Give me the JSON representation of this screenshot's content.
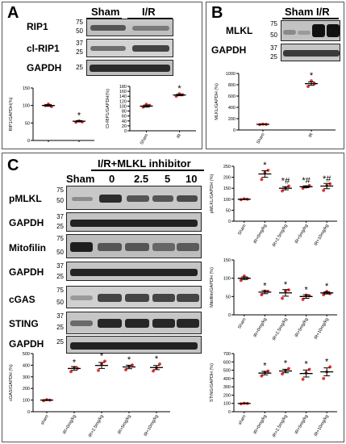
{
  "panels": {
    "A": {
      "label": "A",
      "groups": [
        "Sham",
        "I/R"
      ],
      "rows": [
        {
          "label": "RIP1",
          "mw": [
            "75",
            "50"
          ]
        },
        {
          "label": "cl-RIP1",
          "mw": [
            "37",
            "25"
          ]
        },
        {
          "label": "GAPDH",
          "mw": [
            "25"
          ]
        }
      ]
    },
    "B": {
      "label": "B",
      "groups": [
        "Sham",
        "I/R"
      ],
      "rows": [
        {
          "label": "MLKL",
          "mw": [
            "75",
            "50"
          ]
        },
        {
          "label": "GAPDH",
          "mw": [
            "37",
            "25"
          ]
        }
      ]
    },
    "C": {
      "label": "C",
      "header": "I/R+MLKL inhibitor",
      "group_labels": [
        "Sham",
        "0",
        "2.5",
        "5",
        "10"
      ],
      "rows": [
        {
          "label": "pMLKL",
          "mw": [
            "75",
            "50"
          ]
        },
        {
          "label": "GAPDH",
          "mw": [
            "37",
            "25"
          ]
        },
        {
          "label": "Mitofilin",
          "mw": [
            "75",
            "50"
          ]
        },
        {
          "label": "GAPDH",
          "mw": [
            "37",
            "25"
          ]
        },
        {
          "label": "cGAS",
          "mw": [
            "75",
            "50"
          ]
        },
        {
          "label": "STING",
          "mw": [
            "37",
            "25"
          ]
        },
        {
          "label": "GAPDH",
          "mw": [
            "25"
          ]
        }
      ]
    }
  },
  "chart_data": [
    {
      "id": "A1",
      "type": "scatter",
      "ylabel": "RIP1/GAPDH(%)",
      "ylim": [
        0,
        150
      ],
      "yticks": [
        "0",
        "50",
        "100",
        "150"
      ],
      "categories": [
        "",
        ""
      ],
      "values": [
        100,
        55
      ],
      "points": [
        [
          100,
          104,
          97
        ],
        [
          52,
          56,
          53
        ]
      ],
      "sig": [
        "",
        "*"
      ],
      "xlabel_tilt": false
    },
    {
      "id": "A2",
      "type": "scatter",
      "ylabel": "Cl-RIP1/GAPDH(%)",
      "ylim": [
        0,
        180
      ],
      "yticks": [
        "0",
        "20",
        "40",
        "60",
        "80",
        "100",
        "120",
        "140",
        "160",
        "180"
      ],
      "categories": [
        "Sham",
        "IR"
      ],
      "values": [
        100,
        145
      ],
      "points": [
        [
          96,
          107,
          103
        ],
        [
          140,
          150,
          146
        ]
      ],
      "sig": [
        "",
        "*"
      ],
      "xlabel_tilt": true
    },
    {
      "id": "B1",
      "type": "scatter",
      "ylabel": "MLKL/GAPDH (%)",
      "ylim": [
        0,
        1000
      ],
      "yticks": [
        "0",
        "200",
        "400",
        "600",
        "800",
        "1000"
      ],
      "categories": [
        "Sham",
        "IR"
      ],
      "values": [
        100,
        820
      ],
      "points": [
        [
          95,
          104,
          100
        ],
        [
          770,
          870,
          820
        ]
      ],
      "sig": [
        "",
        "*"
      ],
      "xlabel_tilt": true
    },
    {
      "id": "C1",
      "type": "scatter",
      "ylabel": "pMLKL/GAPDH (%)",
      "ylim": [
        0,
        250
      ],
      "yticks": [
        "0",
        "50",
        "100",
        "150",
        "200",
        "250"
      ],
      "categories": [
        "Sham",
        "IR+0mg/kg",
        "IR+2.5mg/kg",
        "IR+5mg/kg",
        "IR+10mg/kg"
      ],
      "values": [
        100,
        215,
        150,
        157,
        160
      ],
      "points": [
        [
          98,
          102,
          100
        ],
        [
          190,
          222,
          232
        ],
        [
          138,
          152,
          160
        ],
        [
          150,
          156,
          162
        ],
        [
          140,
          162,
          170
        ]
      ],
      "sig": [
        "",
        "*",
        "*#",
        "*#",
        "*#"
      ],
      "xlabel_tilt": true
    },
    {
      "id": "C2",
      "type": "scatter",
      "ylabel": "Mitofilin/GAPDH (%)",
      "ylim": [
        0,
        150
      ],
      "yticks": [
        "0",
        "50",
        "100",
        "150"
      ],
      "categories": [
        "Sham",
        "IR+0mg/kg",
        "IR+2.5mg/kg",
        "IR+5mg/kg",
        "IR+10mg/kg"
      ],
      "values": [
        100,
        62,
        60,
        50,
        60
      ],
      "points": [
        [
          94,
          106,
          100
        ],
        [
          55,
          65,
          64
        ],
        [
          45,
          65,
          68
        ],
        [
          42,
          54,
          52
        ],
        [
          55,
          64,
          58
        ]
      ],
      "sig": [
        "",
        "*",
        "*",
        "*",
        "*"
      ],
      "xlabel_tilt": true
    },
    {
      "id": "C3",
      "type": "scatter",
      "ylabel": "cGAS/GAPDH (%)",
      "ylim": [
        0,
        500
      ],
      "yticks": [
        "0",
        "100",
        "200",
        "300",
        "400",
        "500"
      ],
      "categories": [
        "sham",
        "IR+0mg/kg",
        "IR+2.5mg/kg",
        "IR+5mg/kg",
        "IR+10mg/kg"
      ],
      "values": [
        100,
        372,
        398,
        385,
        380
      ],
      "points": [
        [
          95,
          103,
          100
        ],
        [
          345,
          380,
          372
        ],
        [
          355,
          410,
          435
        ],
        [
          360,
          390,
          402
        ],
        [
          350,
          378,
          410
        ]
      ],
      "sig": [
        "",
        "*",
        "*",
        "*",
        "*"
      ],
      "xlabel_tilt": true
    },
    {
      "id": "C4",
      "type": "scatter",
      "ylabel": "STING/GAPDH (%)",
      "ylim": [
        0,
        700
      ],
      "yticks": [
        "0",
        "100",
        "200",
        "300",
        "400",
        "500",
        "600",
        "700"
      ],
      "categories": [
        "sham",
        "IR+0mg/kg",
        "IR+2.5mg/kg",
        "IR+5mg/kg",
        "IR+10mg/kg"
      ],
      "values": [
        100,
        465,
        490,
        460,
        480
      ],
      "points": [
        [
          95,
          102,
          100
        ],
        [
          430,
          475,
          490
        ],
        [
          455,
          495,
          520
        ],
        [
          390,
          470,
          510
        ],
        [
          400,
          480,
          540
        ]
      ],
      "sig": [
        "",
        "*",
        "*",
        "*",
        "*"
      ],
      "xlabel_tilt": true
    }
  ],
  "colors": {
    "point": "#e8302a",
    "line": "#000000"
  }
}
